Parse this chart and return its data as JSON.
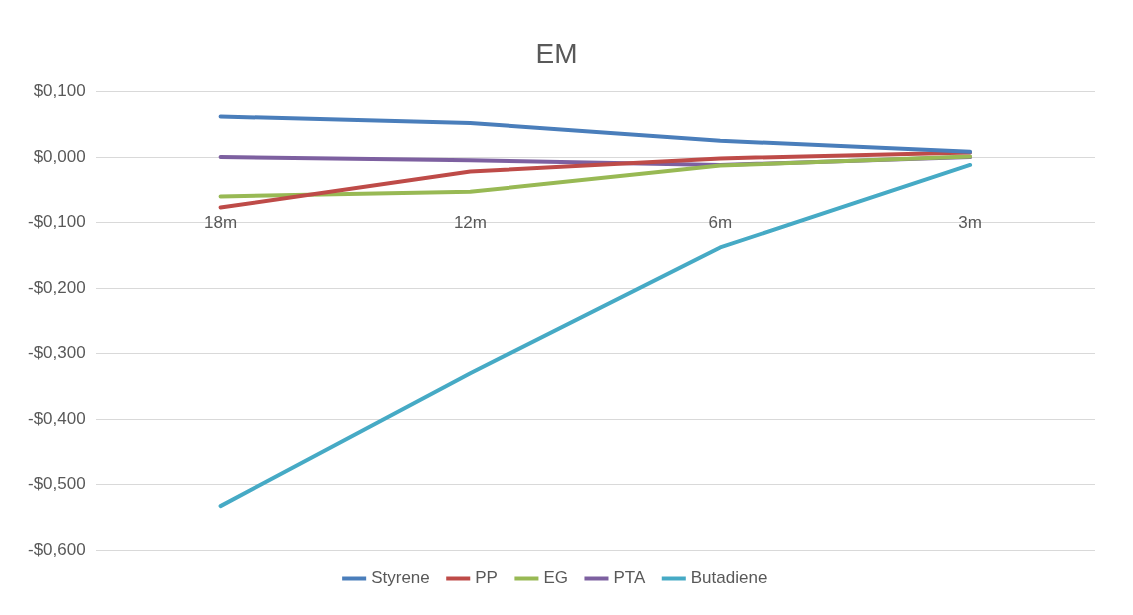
{
  "chart_data": {
    "type": "line",
    "title": "EM",
    "categories": [
      "18m",
      "12m",
      "6m",
      "3m"
    ],
    "series": [
      {
        "name": "Styrene",
        "color": "#4a7ebb",
        "values": [
          0.062,
          0.052,
          0.025,
          0.008
        ]
      },
      {
        "name": "PP",
        "color": "#be4b48",
        "values": [
          -0.077,
          -0.022,
          -0.002,
          0.007
        ]
      },
      {
        "name": "EG",
        "color": "#98b954",
        "values": [
          -0.06,
          -0.053,
          -0.013,
          0.001
        ]
      },
      {
        "name": "PTA",
        "color": "#7d60a0",
        "values": [
          0,
          -0.005,
          -0.012,
          0
        ]
      },
      {
        "name": "Butadiene",
        "color": "#46aac5",
        "values": [
          -0.533,
          -0.33,
          -0.138,
          -0.012
        ]
      }
    ],
    "ylim": [
      -0.6,
      0.1
    ],
    "yticks": [
      {
        "value": 0.1,
        "label": "$0,100"
      },
      {
        "value": 0,
        "label": "$0,000"
      },
      {
        "value": -0.1,
        "label": "-$0,100"
      },
      {
        "value": -0.2,
        "label": "-$0,200"
      },
      {
        "value": -0.3,
        "label": "-$0,300"
      },
      {
        "value": -0.4,
        "label": "-$0,400"
      },
      {
        "value": -0.5,
        "label": "-$0,500"
      },
      {
        "value": -0.6,
        "label": "-$0,600"
      }
    ],
    "grid": "y",
    "legend": "bottom",
    "marker": "none",
    "line_style": "solid"
  }
}
